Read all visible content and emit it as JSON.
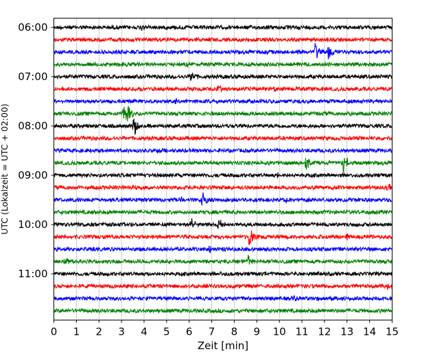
{
  "chart_data": {
    "type": "line",
    "title": "",
    "xlabel": "Zeit  [min]",
    "ylabel": "UTC (Lokalzeit = UTC + 02:00)",
    "xlim": [
      0,
      15
    ],
    "x_ticks": [
      "0",
      "1",
      "2",
      "3",
      "4",
      "5",
      "6",
      "7",
      "8",
      "9",
      "10",
      "11",
      "12",
      "13",
      "14",
      "15"
    ],
    "y_ticks": [
      {
        "label": "06:00",
        "row": 0
      },
      {
        "label": "07:00",
        "row": 4
      },
      {
        "label": "08:00",
        "row": 8
      },
      {
        "label": "09:00",
        "row": 12
      },
      {
        "label": "10:00",
        "row": 16
      },
      {
        "label": "11:00",
        "row": 20
      }
    ],
    "grid": "vertical dotted at each minute",
    "series_colors": [
      "#000000",
      "#ff0000",
      "#0000ff",
      "#008000"
    ],
    "traces": [
      {
        "start": "06:00",
        "color": "#000000",
        "events": [
          {
            "x": 3.9,
            "amp": 0.4
          }
        ]
      },
      {
        "start": "06:15",
        "color": "#ff0000",
        "events": [
          {
            "x": 7.5,
            "amp": 0.25
          },
          {
            "x": 10.3,
            "amp": 0.2
          }
        ]
      },
      {
        "start": "06:30",
        "color": "#0000ff",
        "events": [
          {
            "x": 11.6,
            "amp": 1.3
          },
          {
            "x": 12.2,
            "amp": 1.0
          }
        ]
      },
      {
        "start": "06:45",
        "color": "#008000",
        "events": [
          {
            "x": 3.0,
            "amp": 0.35
          },
          {
            "x": 5.9,
            "amp": 0.3
          }
        ]
      },
      {
        "start": "07:00",
        "color": "#000000",
        "events": [
          {
            "x": 6.1,
            "amp": 0.7
          }
        ]
      },
      {
        "start": "07:15",
        "color": "#ff0000",
        "events": [
          {
            "x": 7.3,
            "amp": 0.5
          },
          {
            "x": 9.8,
            "amp": 0.2
          }
        ]
      },
      {
        "start": "07:30",
        "color": "#0000ff",
        "events": [
          {
            "x": 5.4,
            "amp": 0.3
          }
        ]
      },
      {
        "start": "07:45",
        "color": "#008000",
        "events": [
          {
            "x": 3.1,
            "amp": 1.3
          },
          {
            "x": 3.3,
            "amp": 1.1
          }
        ]
      },
      {
        "start": "08:00",
        "color": "#000000",
        "events": [
          {
            "x": 3.55,
            "amp": 1.4
          }
        ]
      },
      {
        "start": "08:15",
        "color": "#ff0000",
        "events": [
          {
            "x": 6.5,
            "amp": 0.2
          }
        ]
      },
      {
        "start": "08:30",
        "color": "#0000ff",
        "events": [
          {
            "x": 4.6,
            "amp": 0.5
          }
        ]
      },
      {
        "start": "08:45",
        "color": "#008000",
        "events": [
          {
            "x": 11.2,
            "amp": 1.0
          },
          {
            "x": 12.85,
            "amp": 1.5
          }
        ]
      },
      {
        "start": "09:00",
        "color": "#000000",
        "events": [
          {
            "x": 9.9,
            "amp": 0.55
          }
        ]
      },
      {
        "start": "09:15",
        "color": "#ff0000",
        "events": [
          {
            "x": 1.2,
            "amp": 0.45
          },
          {
            "x": 14.8,
            "amp": 0.7
          }
        ]
      },
      {
        "start": "09:30",
        "color": "#0000ff",
        "events": [
          {
            "x": 6.6,
            "amp": 1.1
          },
          {
            "x": 5.6,
            "amp": 0.5
          },
          {
            "x": 10.3,
            "amp": 0.4
          }
        ]
      },
      {
        "start": "09:45",
        "color": "#008000",
        "events": [
          {
            "x": 1.8,
            "amp": 0.3
          }
        ]
      },
      {
        "start": "10:00",
        "color": "#000000",
        "events": [
          {
            "x": 6.1,
            "amp": 1.0
          },
          {
            "x": 7.3,
            "amp": 1.2
          },
          {
            "x": 2.7,
            "amp": 0.4
          }
        ]
      },
      {
        "start": "10:15",
        "color": "#ff0000",
        "events": [
          {
            "x": 8.65,
            "amp": 1.6
          },
          {
            "x": 13.0,
            "amp": 0.7
          }
        ]
      },
      {
        "start": "10:30",
        "color": "#0000ff",
        "events": [
          {
            "x": 6.9,
            "amp": 0.45
          },
          {
            "x": 7.5,
            "amp": 0.35
          }
        ]
      },
      {
        "start": "10:45",
        "color": "#008000",
        "events": [
          {
            "x": 8.6,
            "amp": 1.0
          },
          {
            "x": 0.5,
            "amp": 0.5
          }
        ]
      },
      {
        "start": "11:00",
        "color": "#000000",
        "events": [
          {
            "x": 7.4,
            "amp": 0.25
          }
        ]
      },
      {
        "start": "11:15",
        "color": "#ff0000",
        "events": [
          {
            "x": 14.8,
            "amp": 0.25
          }
        ]
      },
      {
        "start": "11:30",
        "color": "#0000ff",
        "events": [
          {
            "x": 10.7,
            "amp": 0.35
          },
          {
            "x": 11.6,
            "amp": 0.2
          }
        ]
      },
      {
        "start": "11:45",
        "color": "#008000",
        "events": [
          {
            "x": 14.5,
            "amp": 0.2
          }
        ]
      }
    ]
  }
}
